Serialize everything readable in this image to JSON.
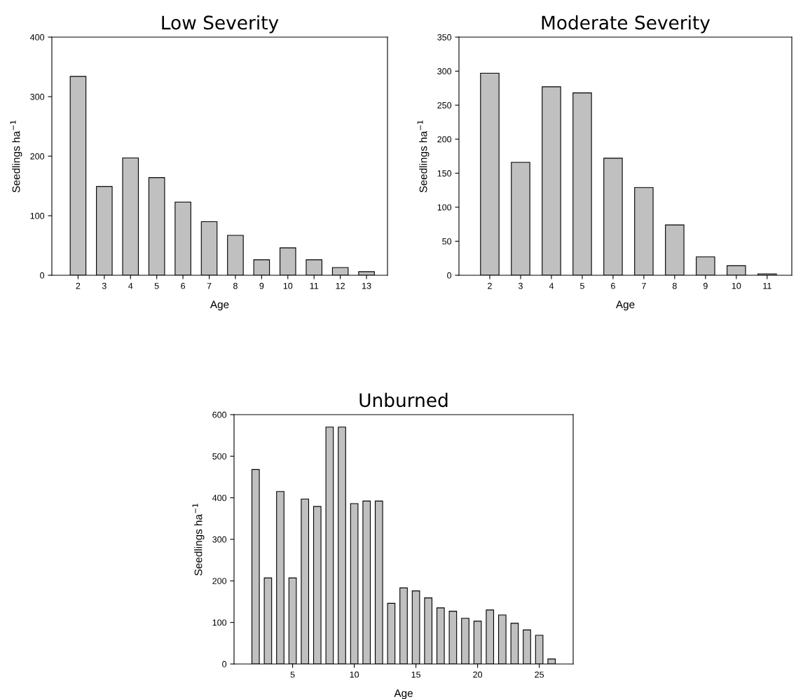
{
  "chart_data": [
    {
      "type": "bar",
      "title": "Low Severity",
      "xlabel": "Age",
      "ylabel": "Seedlings ha$^{−1}$",
      "categories": [
        "2",
        "3",
        "4",
        "5",
        "6",
        "7",
        "8",
        "9",
        "10",
        "11",
        "12",
        "13"
      ],
      "color": "#c0c0c0",
      "values": [
        334,
        149,
        197,
        164,
        123,
        90,
        67,
        26,
        46,
        26,
        13,
        6
      ],
      "ylim": [
        0,
        400
      ],
      "yticks": [
        0,
        100,
        200,
        300,
        400
      ],
      "grid": false,
      "legend": false
    },
    {
      "type": "bar",
      "title": "Moderate Severity",
      "xlabel": "Age",
      "ylabel": "Seedlings ha$^{−1}$",
      "categories": [
        "2",
        "3",
        "4",
        "5",
        "6",
        "7",
        "8",
        "9",
        "10",
        "11"
      ],
      "color": "#c0c0c0",
      "values": [
        297,
        166,
        277,
        268,
        172,
        129,
        74,
        27,
        14,
        2
      ],
      "ylim": [
        0,
        350
      ],
      "yticks": [
        0,
        50,
        100,
        150,
        200,
        250,
        300,
        350
      ],
      "grid": false,
      "legend": false
    },
    {
      "type": "bar",
      "title": "Unburned",
      "xlabel": "Age",
      "ylabel": "Seedlings ha$^{−1}$",
      "color": "#c0c0c0",
      "x": [
        2,
        3,
        4,
        5,
        6,
        7,
        8,
        9,
        10,
        11,
        12,
        13,
        14,
        15,
        16,
        17,
        18,
        19,
        20,
        21,
        22,
        23,
        24,
        25,
        26
      ],
      "values": [
        468,
        207,
        415,
        207,
        397,
        379,
        570,
        570,
        386,
        392,
        392,
        146,
        183,
        176,
        159,
        135,
        127,
        110,
        103,
        130,
        118,
        98,
        82,
        69,
        12
      ],
      "xlim": [
        0.25,
        27.75
      ],
      "xticks": [
        5,
        10,
        15,
        20,
        25
      ],
      "ylim": [
        0,
        600
      ],
      "yticks": [
        0,
        100,
        200,
        300,
        400,
        500,
        600
      ],
      "grid": false,
      "legend": false
    }
  ]
}
